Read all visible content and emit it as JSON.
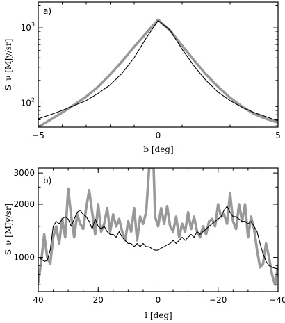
{
  "chart_data": [
    {
      "type": "line",
      "panel_label": "a)",
      "xlabel": "b [deg]",
      "ylabel": "S_ν [MJy/sr]",
      "xlim": [
        -5,
        5
      ],
      "ylim": [
        48,
        2200
      ],
      "yscale": "log",
      "x_ticks": [
        -5,
        0,
        5
      ],
      "y_ticks": [
        {
          "value": 100,
          "base": "10",
          "exp": "2"
        },
        {
          "value": 1000,
          "base": "10",
          "exp": "3"
        }
      ],
      "series": [
        {
          "color": "#999999",
          "x": [
            -5,
            -4.5,
            -4,
            -3.5,
            -3,
            -2.5,
            -2,
            -1.5,
            -1,
            -0.5,
            0,
            0.5,
            1,
            1.5,
            2,
            2.5,
            3,
            3.5,
            4,
            4.5,
            5
          ],
          "values": [
            48,
            60,
            75,
            95,
            122,
            165,
            240,
            360,
            560,
            850,
            1280,
            920,
            580,
            370,
            240,
            165,
            118,
            90,
            72,
            62,
            55
          ]
        },
        {
          "color": "#000000",
          "x": [
            -5,
            -4.5,
            -4,
            -3.5,
            -3,
            -2.5,
            -2,
            -1.5,
            -1,
            -0.5,
            0,
            0.5,
            1,
            1.5,
            2,
            2.5,
            3,
            3.5,
            4,
            4.5,
            5
          ],
          "values": [
            62,
            70,
            80,
            93,
            108,
            135,
            175,
            250,
            400,
            730,
            1250,
            930,
            520,
            310,
            200,
            140,
            108,
            88,
            75,
            66,
            58
          ]
        }
      ]
    },
    {
      "type": "line",
      "panel_label": "b)",
      "xlabel": "l [deg]",
      "ylabel": "S_ν [MJy/sr]",
      "xlim": [
        40,
        -40
      ],
      "ylim": [
        640,
        3200
      ],
      "yscale": "log",
      "x_ticks": [
        40,
        20,
        0,
        -20,
        -40
      ],
      "y_ticks": [
        {
          "value": 1000,
          "label": "1000"
        },
        {
          "value": 2000,
          "label": "2000"
        },
        {
          "value": 3000,
          "label": "3000"
        }
      ],
      "series": [
        {
          "color": "#999999",
          "x": [
            40,
            39,
            38,
            37,
            36,
            35,
            34,
            33,
            32,
            31,
            30,
            29,
            28,
            27,
            26,
            25,
            24,
            23,
            22,
            21,
            20,
            19,
            18,
            17,
            16,
            15,
            14,
            13,
            12,
            11,
            10,
            9,
            8,
            7,
            6,
            5,
            4,
            3,
            2.5,
            2,
            1.5,
            1,
            0,
            -1,
            -2,
            -3,
            -4,
            -5,
            -6,
            -7,
            -8,
            -9,
            -10,
            -11,
            -12,
            -13,
            -14,
            -15,
            -16,
            -17,
            -18,
            -19,
            -20,
            -21,
            -22,
            -23,
            -24,
            -25,
            -26,
            -27,
            -28,
            -29,
            -30,
            -31,
            -32,
            -33,
            -34,
            -35,
            -36,
            -37,
            -38,
            -39,
            -40
          ],
          "values": [
            720,
            950,
            1350,
            1000,
            920,
            1300,
            1500,
            1200,
            1650,
            1300,
            2450,
            1700,
            1300,
            1750,
            1550,
            1450,
            1900,
            2400,
            1800,
            1350,
            2000,
            1400,
            1550,
            1900,
            1400,
            1750,
            1500,
            1650,
            1400,
            1250,
            1600,
            1400,
            1900,
            1250,
            1700,
            1550,
            1800,
            3200,
            3200,
            3200,
            3200,
            1700,
            1500,
            1900,
            1550,
            1950,
            1500,
            1400,
            1700,
            1300,
            1550,
            1400,
            1800,
            1450,
            1700,
            1400,
            1300,
            1500,
            1350,
            1600,
            1650,
            1500,
            2000,
            1700,
            1750,
            1550,
            2300,
            1600,
            1450,
            2000,
            1600,
            2000,
            1300,
            1700,
            1450,
            1100,
            880,
            920,
            1200,
            1000,
            800,
            700,
            900
          ]
        },
        {
          "color": "#000000",
          "x": [
            40,
            39,
            38,
            37,
            36,
            35,
            34,
            33,
            32,
            31,
            30,
            29,
            28,
            27,
            26,
            25,
            24,
            23,
            22,
            21,
            20,
            19,
            18,
            17,
            16,
            15,
            14,
            13,
            12,
            11,
            10,
            9,
            8,
            7,
            6,
            5,
            4,
            3,
            2,
            1,
            0,
            -1,
            -2,
            -3,
            -4,
            -5,
            -6,
            -7,
            -8,
            -9,
            -10,
            -11,
            -12,
            -13,
            -14,
            -15,
            -16,
            -17,
            -18,
            -19,
            -20,
            -21,
            -22,
            -23,
            -24,
            -25,
            -26,
            -27,
            -28,
            -29,
            -30,
            -31,
            -32,
            -33,
            -34,
            -35,
            -36,
            -37,
            -38,
            -39,
            -40
          ],
          "values": [
            1000,
            980,
            950,
            960,
            1100,
            1500,
            1600,
            1550,
            1650,
            1700,
            1650,
            1500,
            1650,
            1800,
            1850,
            1750,
            1700,
            1600,
            1450,
            1650,
            1500,
            1450,
            1500,
            1400,
            1350,
            1350,
            1300,
            1400,
            1300,
            1250,
            1200,
            1200,
            1150,
            1200,
            1150,
            1200,
            1150,
            1150,
            1120,
            1100,
            1100,
            1130,
            1150,
            1180,
            1200,
            1250,
            1200,
            1250,
            1300,
            1250,
            1300,
            1350,
            1300,
            1400,
            1350,
            1400,
            1450,
            1500,
            1550,
            1600,
            1650,
            1700,
            1850,
            1950,
            1800,
            1700,
            1700,
            1650,
            1600,
            1600,
            1550,
            1600,
            1500,
            1400,
            1200,
            1050,
            950,
            900,
            880,
            870,
            860
          ]
        }
      ]
    }
  ]
}
